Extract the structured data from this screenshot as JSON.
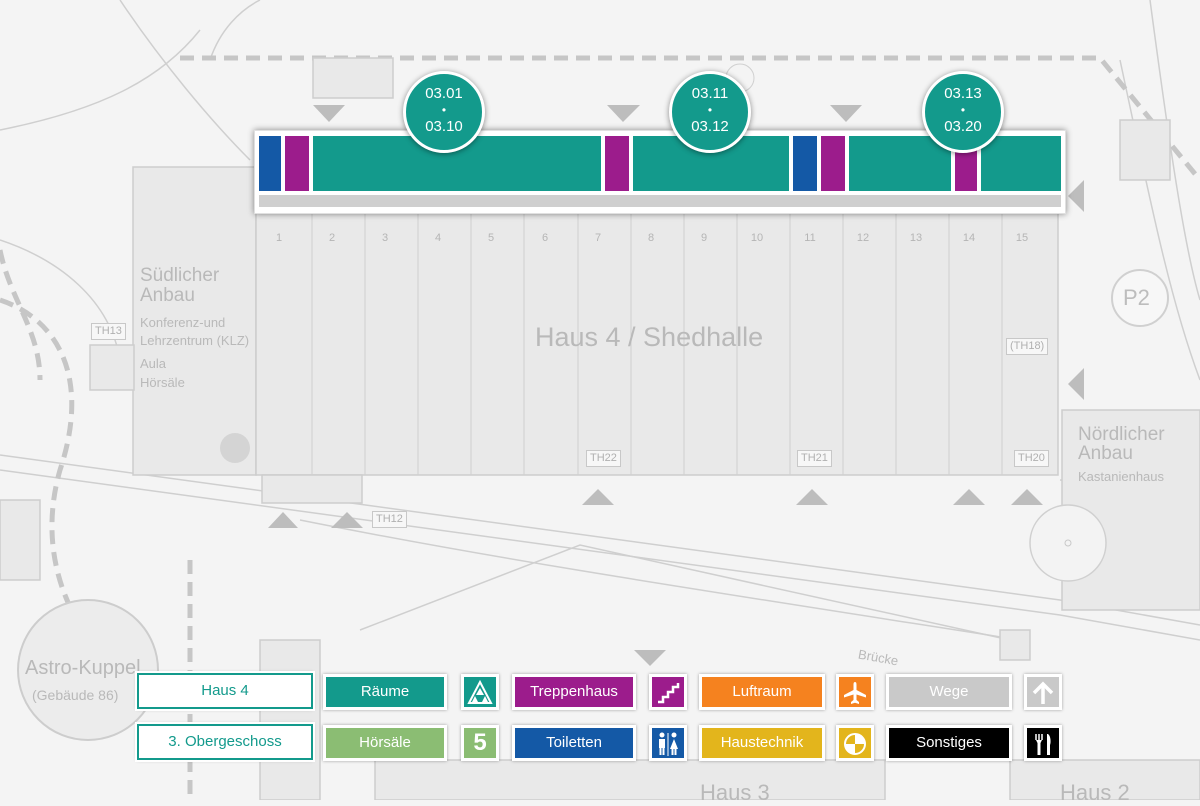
{
  "map": {
    "building_main": "Haus 4 / Shedhalle",
    "south_annex": {
      "title_line1": "Südlicher",
      "title_line2": "Anbau",
      "desc_line1": "Konferenz-und",
      "desc_line2": "Lehrzentrum (KLZ)",
      "desc_line3": "Aula",
      "desc_line4": "Hörsäle"
    },
    "north_annex": {
      "title_line1": "Nördlicher",
      "title_line2": "Anbau",
      "desc": "Kastanienhaus"
    },
    "astro": {
      "title": "Astro-Kuppel",
      "subtitle": "(Gebäude 86)"
    },
    "parking": "P2",
    "bridge": "Brücke",
    "bottom_left_building": "Haus 3",
    "bottom_right_building": "Haus 2",
    "stairwells": [
      "TH13",
      "TH12",
      "TH22",
      "TH21",
      "TH20",
      "(TH18)"
    ],
    "bay_numbers": [
      "1",
      "2",
      "3",
      "4",
      "5",
      "6",
      "7",
      "8",
      "9",
      "10",
      "11",
      "12",
      "13",
      "14",
      "15"
    ]
  },
  "room_markers": [
    {
      "from": "03.01",
      "sep": "•",
      "to": "03.10"
    },
    {
      "from": "03.11",
      "sep": "•",
      "to": "03.12"
    },
    {
      "from": "03.13",
      "sep": "•",
      "to": "03.20"
    }
  ],
  "floor_segments": [
    {
      "type": "Toiletten",
      "color": "#1459a6"
    },
    {
      "type": "Treppenhaus",
      "color": "#9c1c8c"
    },
    {
      "type": "Räume",
      "color": "#139a8c"
    },
    {
      "type": "Treppenhaus",
      "color": "#9c1c8c"
    },
    {
      "type": "Räume",
      "color": "#139a8c"
    },
    {
      "type": "Toiletten",
      "color": "#1459a6"
    },
    {
      "type": "Treppenhaus",
      "color": "#9c1c8c"
    },
    {
      "type": "Räume",
      "color": "#139a8c"
    },
    {
      "type": "Treppenhaus",
      "color": "#9c1c8c"
    },
    {
      "type": "Räume",
      "color": "#139a8c"
    }
  ],
  "legend": {
    "building": "Haus 4",
    "floor": "3. Obergeschoss",
    "items": {
      "raeume": {
        "label": "Räume",
        "color": "#139a8c",
        "icon": "rooms-icon"
      },
      "hoersaele": {
        "label": "Hörsäle",
        "color": "#8bbd73",
        "icon": "lecture-hall-icon",
        "icon_text": "5"
      },
      "treppenhaus": {
        "label": "Treppenhaus",
        "color": "#9c1c8c",
        "icon": "stairs-icon"
      },
      "toiletten": {
        "label": "Toiletten",
        "color": "#1459a6",
        "icon": "restroom-icon"
      },
      "luftraum": {
        "label": "Luftraum",
        "color": "#f5821f",
        "icon": "airplane-icon"
      },
      "haustechnik": {
        "label": "Haustechnik",
        "color": "#e3b51c",
        "icon": "technics-icon"
      },
      "wege": {
        "label": "Wege",
        "color": "#c9c9c9",
        "icon": "arrow-up-icon"
      },
      "sonstiges": {
        "label": "Sonstiges",
        "color": "#000000",
        "icon": "fork-knife-icon"
      }
    }
  }
}
